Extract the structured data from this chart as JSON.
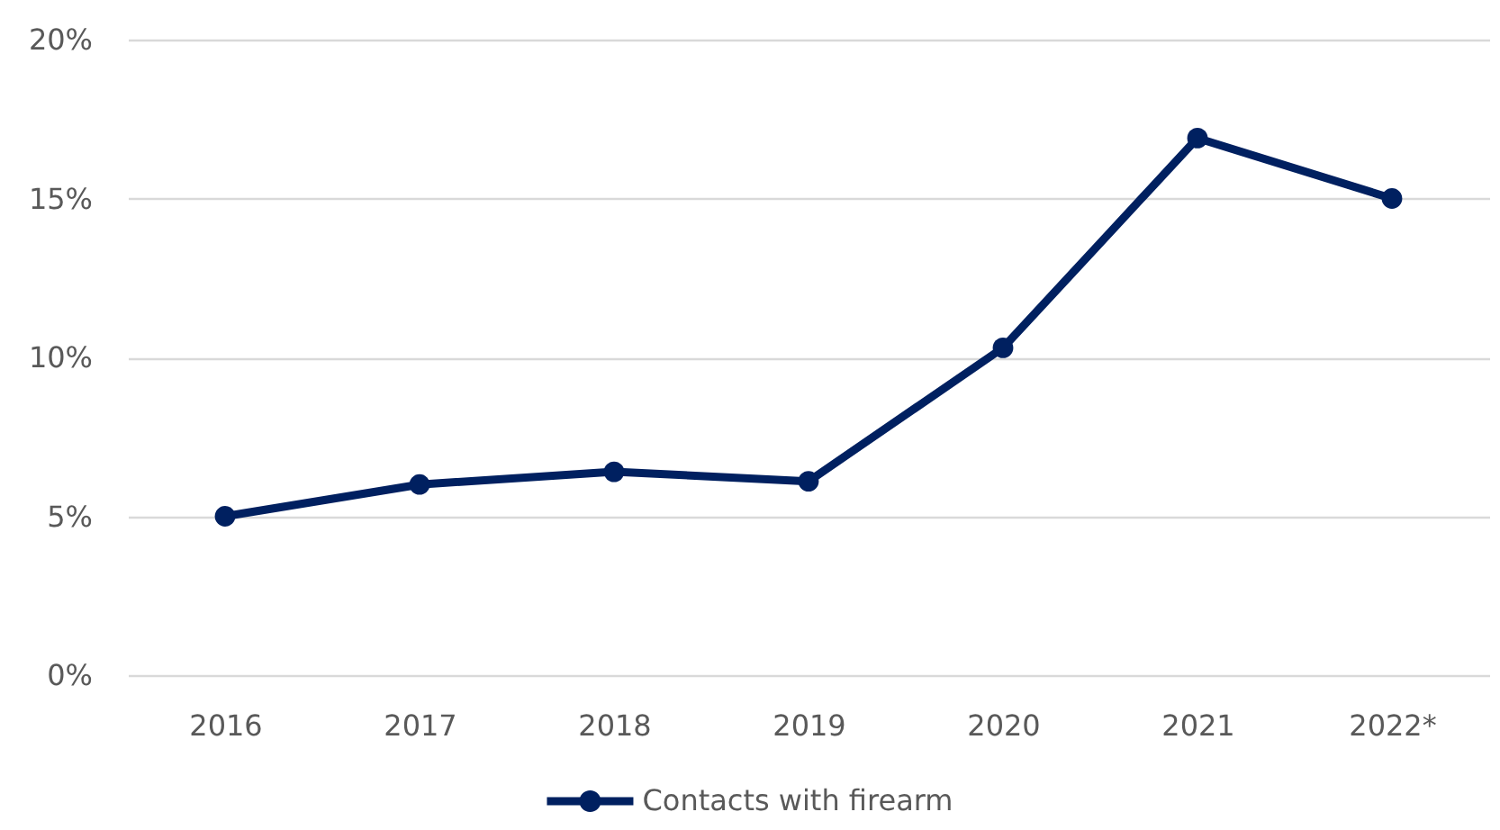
{
  "chart_data": {
    "type": "line",
    "categories": [
      "2016",
      "2017",
      "2018",
      "2019",
      "2020",
      "2021",
      "2022*"
    ],
    "series": [
      {
        "name": "Contacts with firearm",
        "color": "#002060",
        "values": [
          5.0,
          6.0,
          6.4,
          6.1,
          10.3,
          16.9,
          15.0
        ]
      }
    ],
    "ylim": [
      0,
      20
    ],
    "yticks": [
      {
        "value": 0,
        "label": "0%"
      },
      {
        "value": 5,
        "label": "5%"
      },
      {
        "value": 10,
        "label": "10%"
      },
      {
        "value": 15,
        "label": "15%"
      },
      {
        "value": 20,
        "label": "20%"
      }
    ],
    "grid": "y",
    "legend": "bottom",
    "marker": "circle",
    "line_style": "solid"
  }
}
